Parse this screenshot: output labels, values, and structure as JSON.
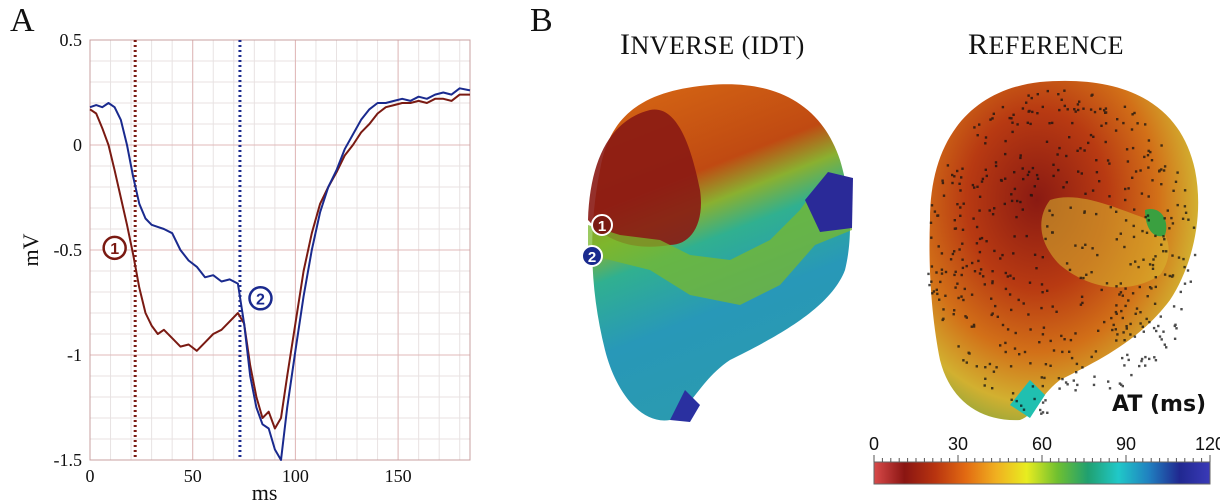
{
  "panel_a": {
    "letter": "A",
    "chart_data": {
      "type": "line",
      "xlabel": "ms",
      "ylabel": "mV",
      "xlim": [
        0,
        185
      ],
      "ylim": [
        -1.5,
        0.5
      ],
      "x_ticks": [
        0,
        50,
        100,
        150
      ],
      "y_ticks": [
        0.5,
        0,
        -0.5,
        -1,
        -1.5
      ],
      "y_tick_labels": [
        "0.5",
        "0",
        "-0.5",
        "-1",
        "-1.5"
      ],
      "grid": true,
      "series": [
        {
          "color": "#7a1a12",
          "x": [
            0,
            3,
            6,
            9,
            12,
            15,
            18,
            21,
            24,
            27,
            30,
            33,
            36,
            40,
            44,
            48,
            52,
            56,
            60,
            64,
            68,
            72,
            75,
            78,
            81,
            84,
            87,
            90,
            93,
            96,
            100,
            104,
            108,
            112,
            116,
            120,
            124,
            128,
            132,
            136,
            140,
            144,
            148,
            152,
            156,
            160,
            164,
            168,
            172,
            176,
            180,
            185
          ],
          "y": [
            0.17,
            0.15,
            0.08,
            0.0,
            -0.12,
            -0.25,
            -0.38,
            -0.52,
            -0.68,
            -0.8,
            -0.86,
            -0.9,
            -0.88,
            -0.92,
            -0.96,
            -0.95,
            -0.98,
            -0.94,
            -0.9,
            -0.88,
            -0.84,
            -0.8,
            -0.85,
            -1.05,
            -1.2,
            -1.3,
            -1.27,
            -1.35,
            -1.3,
            -1.1,
            -0.85,
            -0.6,
            -0.42,
            -0.28,
            -0.2,
            -0.13,
            -0.05,
            0.0,
            0.06,
            0.1,
            0.15,
            0.18,
            0.19,
            0.2,
            0.2,
            0.21,
            0.2,
            0.22,
            0.22,
            0.21,
            0.24,
            0.24
          ]
        },
        {
          "color": "#1a2a8e",
          "x": [
            0,
            3,
            6,
            9,
            12,
            15,
            18,
            21,
            24,
            27,
            30,
            33,
            36,
            40,
            44,
            48,
            52,
            56,
            60,
            64,
            68,
            72,
            75,
            78,
            81,
            84,
            87,
            90,
            93,
            96,
            100,
            104,
            108,
            112,
            116,
            120,
            124,
            128,
            132,
            136,
            140,
            144,
            148,
            152,
            156,
            160,
            164,
            168,
            172,
            176,
            180,
            185
          ],
          "y": [
            0.18,
            0.19,
            0.18,
            0.2,
            0.18,
            0.12,
            0.0,
            -0.15,
            -0.28,
            -0.35,
            -0.38,
            -0.39,
            -0.4,
            -0.42,
            -0.5,
            -0.55,
            -0.58,
            -0.63,
            -0.62,
            -0.65,
            -0.64,
            -0.66,
            -0.85,
            -1.1,
            -1.25,
            -1.33,
            -1.35,
            -1.45,
            -1.5,
            -1.25,
            -0.98,
            -0.72,
            -0.5,
            -0.32,
            -0.2,
            -0.12,
            -0.02,
            0.05,
            0.12,
            0.17,
            0.2,
            0.2,
            0.21,
            0.22,
            0.21,
            0.23,
            0.22,
            0.24,
            0.25,
            0.24,
            0.27,
            0.26
          ]
        }
      ],
      "markers": [
        {
          "label": "1",
          "x": 22,
          "color": "#7a1a12",
          "style": "dotted"
        },
        {
          "label": "2",
          "x": 73,
          "color": "#1a2a8e",
          "style": "dotted"
        }
      ]
    }
  },
  "panel_b": {
    "letter": "B",
    "title_inverse_cap": "I",
    "title_inverse_rest": "NVERSE (IDT)",
    "title_reference_cap": "R",
    "title_reference_rest": "EFERENCE",
    "marker_1": "1",
    "marker_2": "2",
    "colorbar": {
      "label": "AT (ms)",
      "ticks": [
        "0",
        "30",
        "60",
        "90",
        "120"
      ],
      "colors": [
        "#d84a4a",
        "#8a1512",
        "#b83410",
        "#e26a12",
        "#f0b020",
        "#e8ec20",
        "#70c030",
        "#20a070",
        "#20c8c8",
        "#2080c0",
        "#202890",
        "#3a3ab8"
      ]
    }
  }
}
